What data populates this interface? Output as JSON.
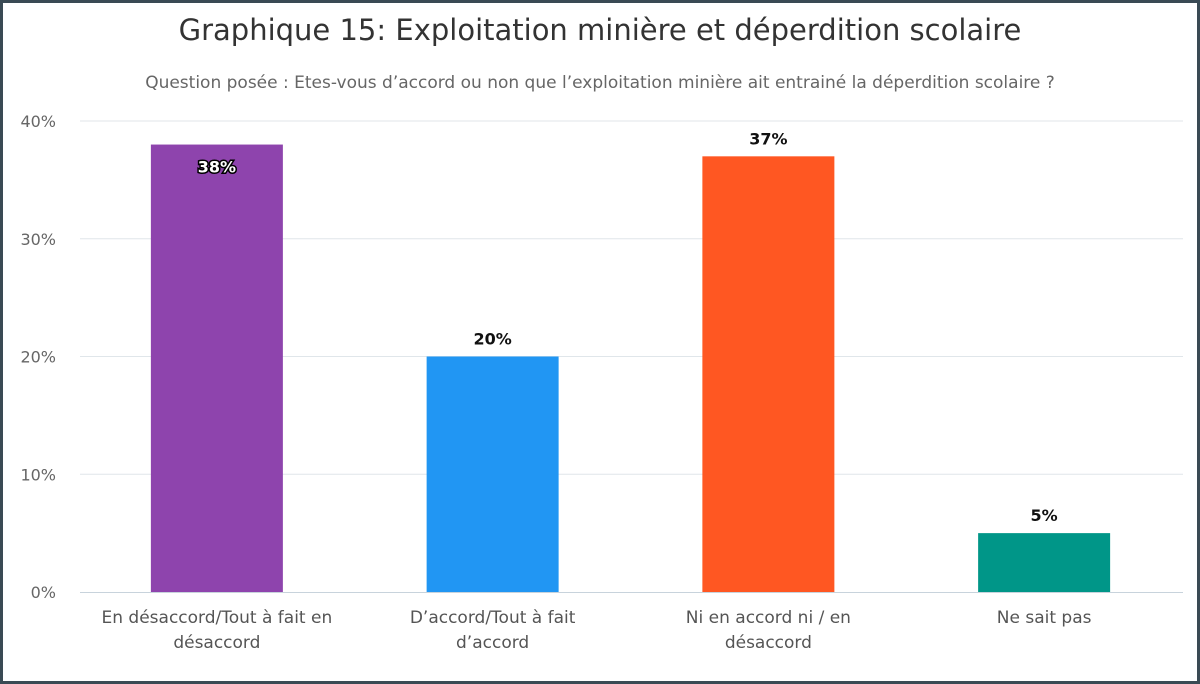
{
  "chart_data": {
    "type": "bar",
    "title": "Graphique 15: Exploitation minière et déperdition scolaire",
    "subtitle": "Question posée : Etes-vous d’accord ou non que l’exploitation minière ait entrainé la déperdition scolaire ?",
    "categories": [
      [
        "En désaccord/Tout à fait en",
        "désaccord"
      ],
      [
        "D’accord/Tout à fait",
        "d’accord"
      ],
      [
        "Ni en accord ni / en",
        "désaccord"
      ],
      [
        "Ne sait pas"
      ]
    ],
    "values": [
      38,
      20,
      37,
      5
    ],
    "data_labels": [
      "38%",
      "20%",
      "37%",
      "5%"
    ],
    "colors": [
      "#8e44ad",
      "#2196f3",
      "#ff5722",
      "#009688"
    ],
    "ylim": [
      0,
      40
    ],
    "yticks": [
      {
        "value": 0,
        "label": "0%"
      },
      {
        "value": 10,
        "label": "10%"
      },
      {
        "value": 20,
        "label": "20%"
      },
      {
        "value": 30,
        "label": "30%"
      },
      {
        "value": 40,
        "label": "40%"
      }
    ],
    "grid": true,
    "legend": "none"
  }
}
